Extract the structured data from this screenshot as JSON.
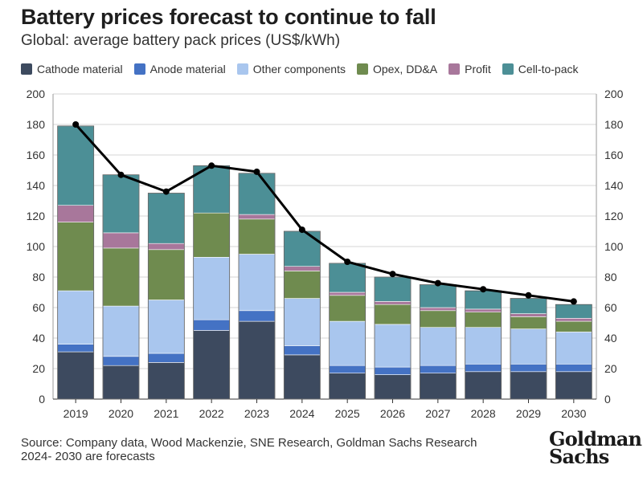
{
  "chart_data": {
    "type": "bar",
    "title": "Battery prices forecast to continue to fall",
    "subtitle": "Global: average battery pack prices (US$/kWh)",
    "categories": [
      "2019",
      "2020",
      "2021",
      "2022",
      "2023",
      "2024",
      "2025",
      "2026",
      "2027",
      "2028",
      "2029",
      "2030"
    ],
    "stacked": true,
    "series": [
      {
        "name": "Cathode material",
        "color": "#3d4a5f",
        "values": [
          31,
          22,
          24,
          45,
          51,
          29,
          17,
          16,
          17,
          18,
          18,
          18
        ]
      },
      {
        "name": "Anode material",
        "color": "#4472c4",
        "values": [
          5,
          6,
          6,
          7,
          7,
          6,
          5,
          5,
          5,
          5,
          5,
          5
        ]
      },
      {
        "name": "Other components",
        "color": "#a9c6ee",
        "values": [
          35,
          33,
          35,
          41,
          37,
          31,
          29,
          28,
          25,
          24,
          23,
          21
        ]
      },
      {
        "name": "Opex, DD&A",
        "color": "#6f8b4f",
        "values": [
          45,
          38,
          33,
          29,
          23,
          18,
          17,
          13,
          11,
          10,
          8,
          7
        ]
      },
      {
        "name": "Profit",
        "color": "#a8779b",
        "values": [
          11,
          10,
          4,
          0,
          3,
          3,
          2,
          2,
          2,
          2,
          2,
          2
        ]
      },
      {
        "name": "Cell-to-pack",
        "color": "#4c8f96",
        "values": [
          52,
          38,
          33,
          31,
          27,
          23,
          19,
          16,
          15,
          12,
          10,
          9
        ]
      }
    ],
    "line": {
      "values": [
        180,
        147,
        136,
        153,
        149,
        111,
        90,
        82,
        76,
        72,
        68,
        64
      ],
      "color": "#000000"
    },
    "ylim": [
      0,
      200
    ],
    "yticks": [
      0,
      20,
      40,
      60,
      80,
      100,
      120,
      140,
      160,
      180,
      200
    ],
    "grid": true,
    "legend_position": "top"
  },
  "footer": {
    "source_line1": "Source: Company data, Wood Mackenzie, SNE Research, Goldman Sachs Research",
    "source_line2": "2024- 2030 are forecasts",
    "logo_line1": "Goldman",
    "logo_line2": "Sachs"
  }
}
